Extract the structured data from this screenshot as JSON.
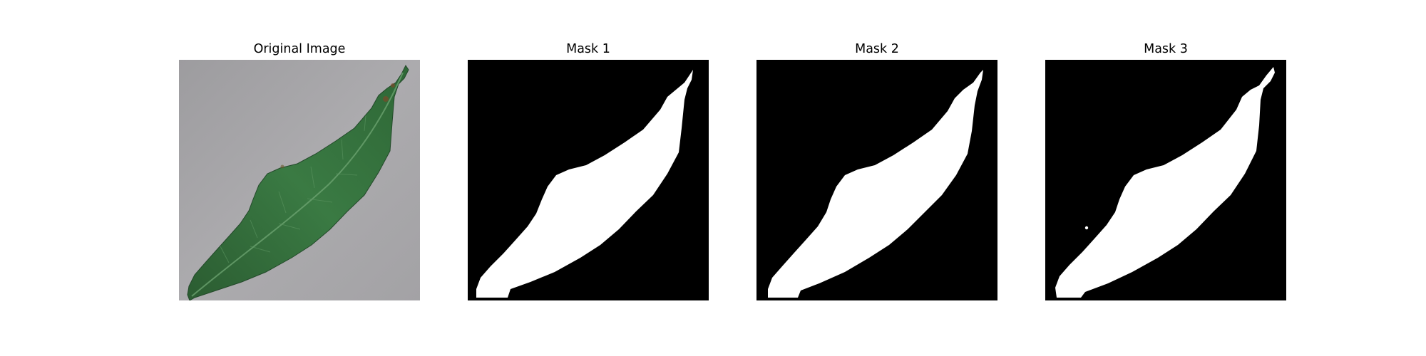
{
  "figure": {
    "panels": [
      {
        "title": "Original Image",
        "kind": "photo"
      },
      {
        "title": "Mask 1",
        "kind": "mask"
      },
      {
        "title": "Mask 2",
        "kind": "mask"
      },
      {
        "title": "Mask 3",
        "kind": "mask"
      }
    ]
  },
  "colors": {
    "background_gray": "#a9a8ab",
    "leaf_green": "#2f6a38",
    "mask_background": "#000000",
    "mask_foreground": "#ffffff"
  }
}
